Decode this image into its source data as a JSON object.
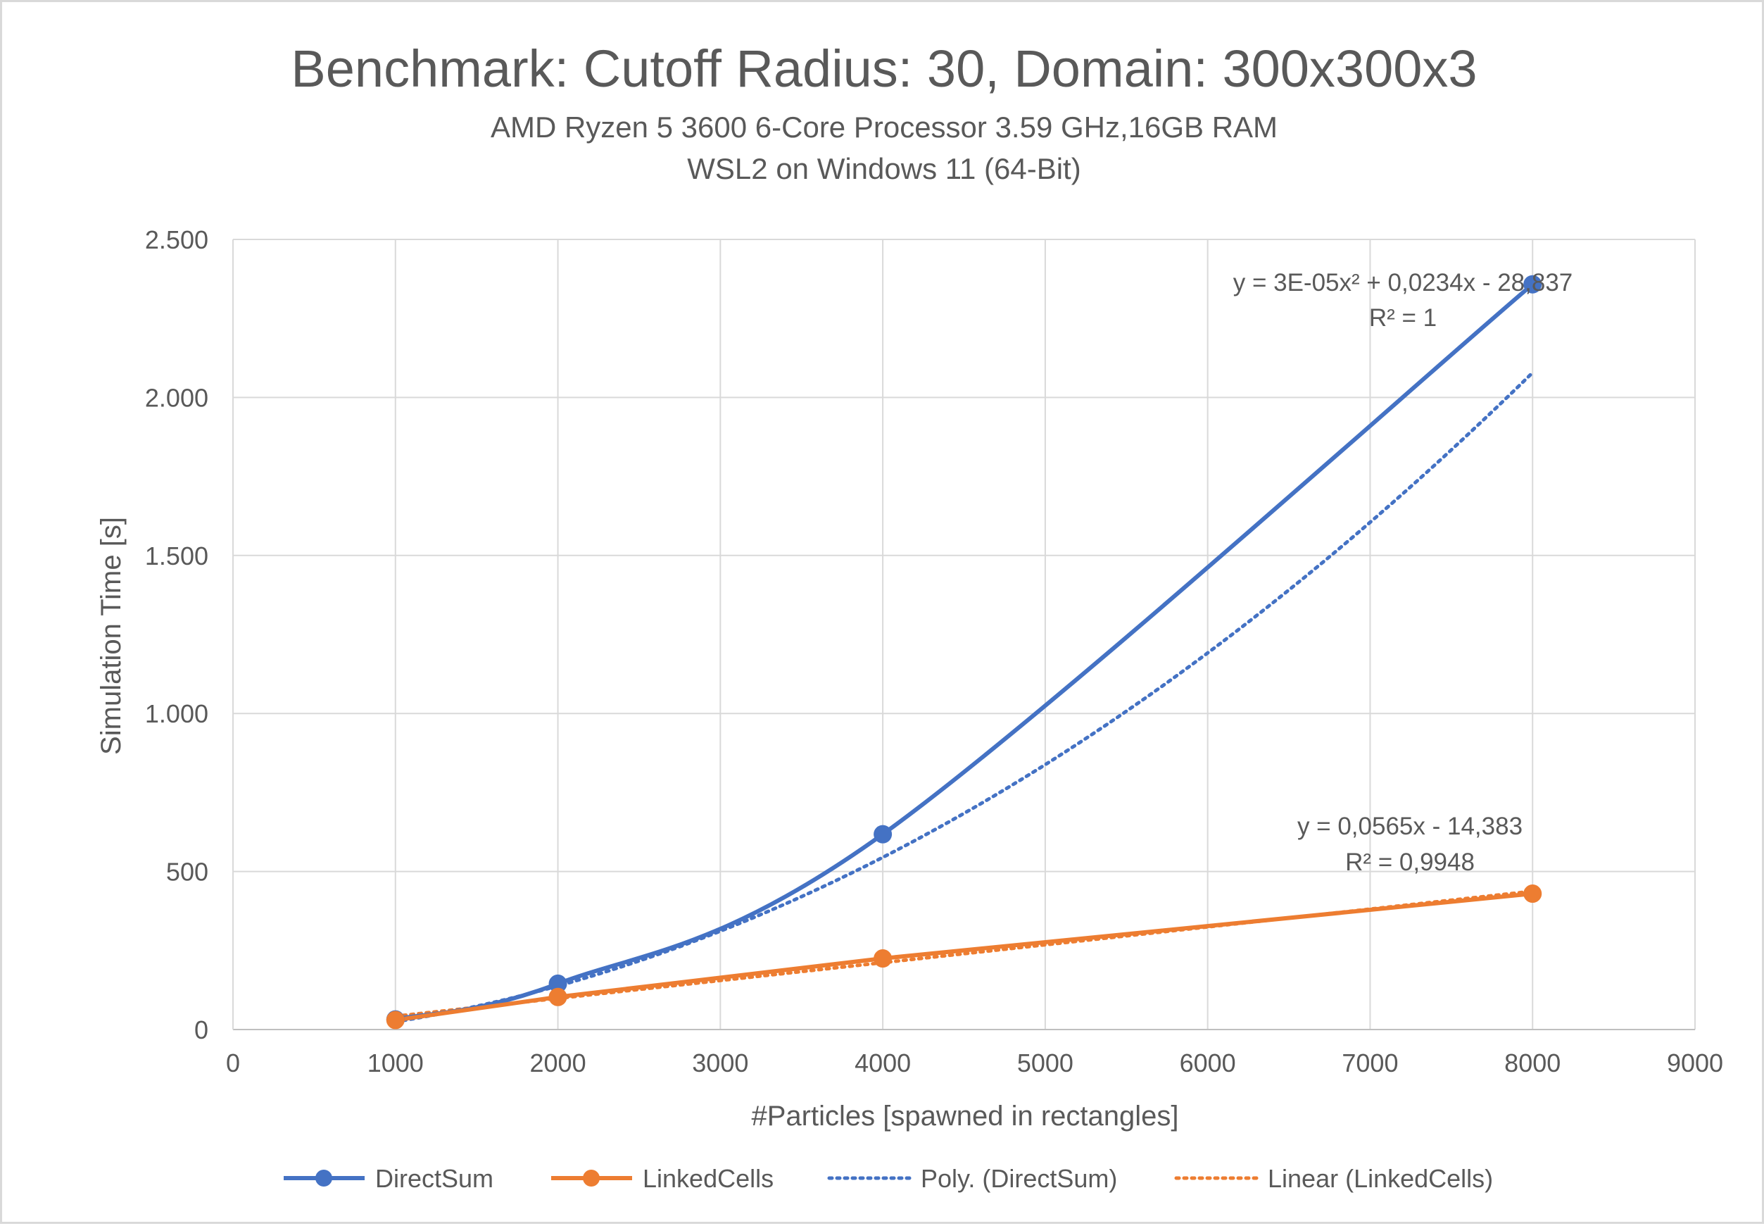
{
  "chart_data": {
    "type": "scatter",
    "title": "Benchmark: Cutoff Radius: 30, Domain: 300x300x3",
    "subtitle_lines": [
      "AMD Ryzen 5 3600 6-Core Processor 3.59 GHz,16GB RAM",
      "WSL2 on Windows 11 (64-Bit)"
    ],
    "xlabel": "#Particles [spawned in rectangles]",
    "ylabel": "Simulation Time [s]",
    "xlim": [
      0,
      9000
    ],
    "ylim": [
      0,
      2500
    ],
    "x_ticks": [
      0,
      1000,
      2000,
      3000,
      4000,
      5000,
      6000,
      7000,
      8000,
      9000
    ],
    "y_ticks": [
      0,
      500,
      1000,
      1500,
      2000,
      2500
    ],
    "x_tick_labels": [
      "0",
      "1000",
      "2000",
      "3000",
      "4000",
      "5000",
      "6000",
      "7000",
      "8000",
      "9000"
    ],
    "y_tick_labels": [
      "0",
      "500",
      "1.000",
      "1.500",
      "2.000",
      "2.500"
    ],
    "grid": "both",
    "legend_position": "bottom",
    "series": [
      {
        "name": "DirectSum",
        "color": "#4472c4",
        "x": [
          1000,
          2000,
          4000,
          8000
        ],
        "y": [
          32,
          145,
          618,
          2358
        ],
        "smooth": true,
        "markers": true
      },
      {
        "name": "LinkedCells",
        "color": "#ed7d31",
        "x": [
          1000,
          2000,
          4000,
          8000
        ],
        "y": [
          30,
          103,
          225,
          430
        ],
        "smooth": false,
        "markers": true
      }
    ],
    "trendlines": [
      {
        "name": "Poly. (DirectSum)",
        "of": "DirectSum",
        "kind": "polynomial",
        "color": "#4472c4",
        "coefficients": {
          "a": 3e-05,
          "b": 0.0234,
          "c": -28.837
        },
        "x_range": [
          1000,
          8000
        ],
        "equation": "y = 3E-05x² + 0,0234x - 28,837",
        "r2": "R² = 1"
      },
      {
        "name": "Linear (LinkedCells)",
        "of": "LinkedCells",
        "kind": "linear",
        "color": "#ed7d31",
        "coefficients": {
          "m": 0.0565,
          "c": -14.383
        },
        "x_range": [
          1000,
          8000
        ],
        "equation": "y = 0,0565x - 14,383",
        "r2": "R² = 0,9948"
      }
    ],
    "legend": [
      "DirectSum",
      "LinkedCells",
      "Poly. (DirectSum)",
      "Linear (LinkedCells)"
    ]
  }
}
